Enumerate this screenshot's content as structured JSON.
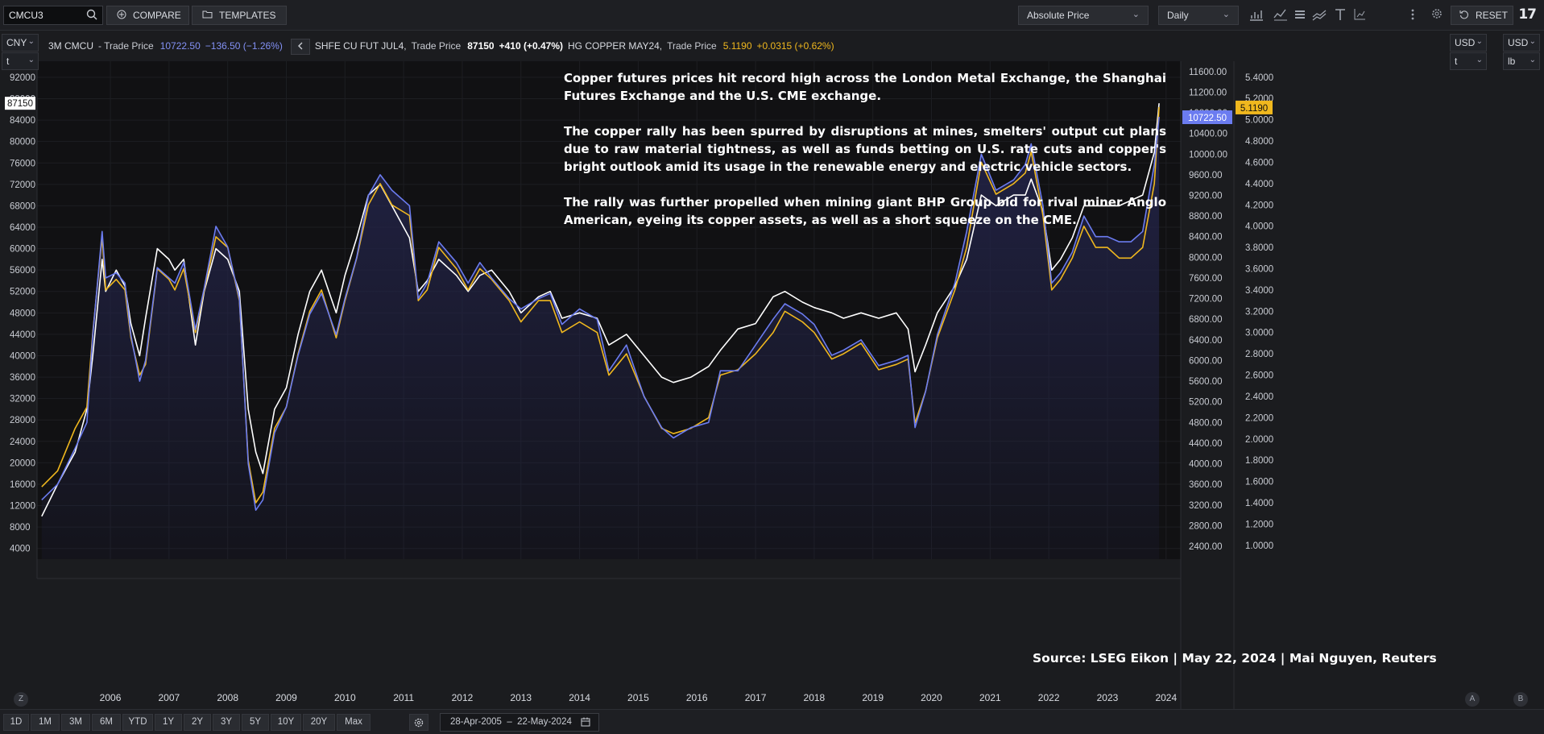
{
  "toolbar": {
    "ticker": "CMCU3",
    "compare_label": "COMPARE",
    "templates_label": "TEMPLATES",
    "price_mode": "Absolute Price",
    "interval": "Daily",
    "reset_label": "RESET",
    "logo": "17"
  },
  "left_axis_selectors": {
    "currency": "CNY",
    "unit": "t"
  },
  "right_axis_selectors": {
    "currency": "USD",
    "unit": "t",
    "currency2": "USD",
    "unit2": "lb"
  },
  "legend": {
    "s1_name": "3M CMCU",
    "s1_field": "- Trade Price",
    "s1_value": "10722.50",
    "s1_change": "−136.50 (−1.26%)",
    "s2_name": "SHFE CU FUT JUL4,",
    "s2_field": "Trade Price",
    "s2_value": "87150",
    "s2_change": "+410 (+0.47%)",
    "s3_name": "HG COPPER MAY24,",
    "s3_field": "Trade Price",
    "s3_value": "5.1190",
    "s3_change": "+0.0315 (+0.62%)"
  },
  "annotation": {
    "p1": "Copper futures prices hit record high across the London Metal Exchange, the Shanghai Futures Exchange and the U.S. CME exchange.",
    "p2": "The copper rally has been spurred by disruptions at mines, smelters' output cut plans due to raw material tightness, as well as funds betting on U.S. rate cuts and copper's bright outlook amid its usage in the renewable energy and electric vehicle sectors.",
    "p3": "The rally was further propelled when mining giant BHP Group bid for rival miner Anglo American, eyeing its copper assets, as well as a short squeeze on the CME."
  },
  "source": "Source: LSEG Eikon | May 22, 2024 | Mai Nguyen, Reuters",
  "bottom": {
    "z_label": "Z",
    "a_label": "A",
    "b_label": "B",
    "ranges": [
      "1D",
      "1M",
      "3M",
      "6M",
      "YTD",
      "1Y",
      "2Y",
      "3Y",
      "5Y",
      "10Y",
      "20Y",
      "Max"
    ],
    "date_range": "28-Apr-2005  –  22-May-2024"
  },
  "colors": {
    "lme": "#6b7cf0",
    "shfe": "#ffffff",
    "comex": "#f0b81e",
    "background": "#111113",
    "area": "#23244a"
  },
  "chart_data": {
    "type": "line",
    "x_ticks": [
      "2006",
      "2007",
      "2008",
      "2009",
      "2010",
      "2011",
      "2012",
      "2013",
      "2014",
      "2015",
      "2016",
      "2017",
      "2018",
      "2019",
      "2020",
      "2021",
      "2022",
      "2023",
      "2024"
    ],
    "left_axis": {
      "ticks": [
        4000,
        8000,
        12000,
        16000,
        20000,
        24000,
        28000,
        32000,
        36000,
        40000,
        44000,
        48000,
        52000,
        56000,
        60000,
        64000,
        68000,
        72000,
        76000,
        80000,
        84000,
        88000,
        92000
      ],
      "range": [
        2000,
        95000
      ],
      "last_label": "87150"
    },
    "right_axis_1": {
      "ticks": [
        2400,
        2800,
        3200,
        3600,
        4000,
        4400,
        4800,
        5200,
        5600,
        6000,
        6400,
        6800,
        7200,
        7600,
        8000,
        8400,
        8800,
        9200,
        9600,
        10000,
        10400,
        10800,
        11200,
        11600
      ],
      "range": [
        2150,
        11800
      ],
      "last_label": "10722.50"
    },
    "right_axis_2": {
      "ticks": [
        1.0,
        1.2,
        1.4,
        1.6,
        1.8,
        2.0,
        2.2,
        2.4,
        2.6,
        2.8,
        3.0,
        3.2,
        3.4,
        3.6,
        3.8,
        4.0,
        4.2,
        4.4,
        4.6,
        4.8,
        5.0,
        5.2,
        5.4
      ],
      "range": [
        0.87,
        5.55
      ],
      "last_label": "5.1190"
    },
    "series": [
      {
        "name": "3M CMCU",
        "axis": "right_axis_1",
        "x": [
          2005.33,
          2005.6,
          2005.9,
          2006.1,
          2006.2,
          2006.36,
          2006.42,
          2006.6,
          2006.75,
          2006.85,
          2007.0,
          2007.1,
          2007.3,
          2007.5,
          2007.6,
          2007.75,
          2007.95,
          2008.1,
          2008.3,
          2008.5,
          2008.7,
          2008.85,
          2008.98,
          2009.1,
          2009.3,
          2009.5,
          2009.7,
          2009.9,
          2010.1,
          2010.35,
          2010.5,
          2010.7,
          2010.9,
          2011.1,
          2011.3,
          2011.6,
          2011.75,
          2011.9,
          2012.1,
          2012.4,
          2012.6,
          2012.8,
          2013.0,
          2013.3,
          2013.5,
          2013.8,
          2014.0,
          2014.2,
          2014.5,
          2014.8,
          2015.0,
          2015.3,
          2015.6,
          2015.9,
          2016.1,
          2016.4,
          2016.7,
          2016.9,
          2017.2,
          2017.5,
          2017.8,
          2018.0,
          2018.3,
          2018.5,
          2018.8,
          2019.0,
          2019.3,
          2019.6,
          2019.9,
          2020.1,
          2020.22,
          2020.4,
          2020.6,
          2020.9,
          2021.1,
          2021.35,
          2021.6,
          2021.9,
          2022.1,
          2022.2,
          2022.4,
          2022.55,
          2022.7,
          2022.9,
          2023.1,
          2023.3,
          2023.5,
          2023.7,
          2023.9,
          2024.1,
          2024.3,
          2024.38
        ],
        "values": [
          3300,
          3600,
          4300,
          4800,
          6500,
          8500,
          7600,
          7700,
          7500,
          6500,
          5600,
          6000,
          7800,
          7600,
          7500,
          7900,
          6600,
          7400,
          8600,
          8200,
          7200,
          4000,
          3100,
          3300,
          4600,
          5100,
          6100,
          6900,
          7300,
          6500,
          7200,
          8000,
          9200,
          9600,
          9300,
          9000,
          7200,
          7500,
          8300,
          7900,
          7500,
          7900,
          7600,
          7200,
          7000,
          7200,
          7300,
          6700,
          7000,
          6800,
          5800,
          6300,
          5300,
          4700,
          4500,
          4700,
          4800,
          5800,
          5800,
          6300,
          6800,
          7100,
          6900,
          6700,
          6100,
          6200,
          6400,
          5900,
          6000,
          6100,
          4700,
          5400,
          6500,
          7500,
          8500,
          10000,
          9300,
          9500,
          9800,
          10200,
          9000,
          7500,
          7700,
          8100,
          8800,
          8400,
          8400,
          8300,
          8300,
          8500,
          9800,
          10722.5
        ]
      },
      {
        "name": "SHFE CU FUT JUL4",
        "axis": "left_axis",
        "x": [
          2005.33,
          2005.6,
          2005.9,
          2006.1,
          2006.2,
          2006.36,
          2006.42,
          2006.6,
          2006.75,
          2006.85,
          2007.0,
          2007.1,
          2007.3,
          2007.5,
          2007.6,
          2007.75,
          2007.95,
          2008.1,
          2008.3,
          2008.5,
          2008.7,
          2008.85,
          2008.98,
          2009.1,
          2009.3,
          2009.5,
          2009.7,
          2009.9,
          2010.1,
          2010.35,
          2010.5,
          2010.7,
          2010.9,
          2011.1,
          2011.3,
          2011.6,
          2011.75,
          2011.9,
          2012.1,
          2012.4,
          2012.6,
          2012.8,
          2013.0,
          2013.3,
          2013.5,
          2013.8,
          2014.0,
          2014.2,
          2014.5,
          2014.8,
          2015.0,
          2015.3,
          2015.6,
          2015.9,
          2016.1,
          2016.4,
          2016.7,
          2016.9,
          2017.2,
          2017.5,
          2017.8,
          2018.0,
          2018.3,
          2018.5,
          2018.8,
          2019.0,
          2019.3,
          2019.6,
          2019.9,
          2020.1,
          2020.22,
          2020.4,
          2020.6,
          2020.9,
          2021.1,
          2021.35,
          2021.6,
          2021.9,
          2022.1,
          2022.2,
          2022.4,
          2022.55,
          2022.7,
          2022.9,
          2023.1,
          2023.3,
          2023.5,
          2023.7,
          2023.9,
          2024.1,
          2024.3,
          2024.38
        ],
        "values": [
          10000,
          16000,
          22000,
          30000,
          40000,
          58000,
          52000,
          56000,
          53000,
          46000,
          40000,
          47000,
          60000,
          58000,
          56000,
          58000,
          42000,
          52000,
          60000,
          58000,
          52000,
          30000,
          22000,
          18000,
          30000,
          34000,
          44000,
          52000,
          56000,
          48000,
          55000,
          62000,
          70000,
          72000,
          68000,
          62000,
          52000,
          54000,
          58000,
          55000,
          52000,
          55000,
          56000,
          52000,
          48000,
          51000,
          52000,
          47000,
          48000,
          47000,
          42000,
          44000,
          40000,
          36000,
          35000,
          36000,
          38000,
          41000,
          45000,
          46000,
          51000,
          52000,
          50000,
          49000,
          48000,
          47000,
          48000,
          47000,
          48000,
          45000,
          37000,
          42000,
          48000,
          53000,
          58000,
          70000,
          68000,
          70000,
          70000,
          73000,
          67000,
          56000,
          58000,
          62000,
          68000,
          68000,
          68000,
          68000,
          69000,
          70000,
          78000,
          87150
        ]
      },
      {
        "name": "HG COPPER MAY24",
        "axis": "right_axis_2",
        "x": [
          2005.33,
          2005.6,
          2005.9,
          2006.1,
          2006.2,
          2006.36,
          2006.42,
          2006.6,
          2006.75,
          2006.85,
          2007.0,
          2007.1,
          2007.3,
          2007.5,
          2007.6,
          2007.75,
          2007.95,
          2008.1,
          2008.3,
          2008.5,
          2008.7,
          2008.85,
          2008.98,
          2009.1,
          2009.3,
          2009.5,
          2009.7,
          2009.9,
          2010.1,
          2010.35,
          2010.5,
          2010.7,
          2010.9,
          2011.1,
          2011.3,
          2011.6,
          2011.75,
          2011.9,
          2012.1,
          2012.4,
          2012.6,
          2012.8,
          2013.0,
          2013.3,
          2013.5,
          2013.8,
          2014.0,
          2014.2,
          2014.5,
          2014.8,
          2015.0,
          2015.3,
          2015.6,
          2015.9,
          2016.1,
          2016.4,
          2016.7,
          2016.9,
          2017.2,
          2017.5,
          2017.8,
          2018.0,
          2018.3,
          2018.5,
          2018.8,
          2019.0,
          2019.3,
          2019.6,
          2019.9,
          2020.1,
          2020.22,
          2020.4,
          2020.6,
          2020.9,
          2021.1,
          2021.35,
          2021.6,
          2021.9,
          2022.1,
          2022.2,
          2022.4,
          2022.55,
          2022.7,
          2022.9,
          2023.1,
          2023.3,
          2023.5,
          2023.7,
          2023.9,
          2024.1,
          2024.3,
          2024.38
        ],
        "values": [
          1.55,
          1.7,
          2.1,
          2.3,
          3.0,
          3.9,
          3.4,
          3.5,
          3.4,
          2.95,
          2.6,
          2.7,
          3.6,
          3.5,
          3.4,
          3.6,
          3.0,
          3.4,
          3.9,
          3.8,
          3.3,
          1.8,
          1.4,
          1.5,
          2.1,
          2.3,
          2.8,
          3.2,
          3.4,
          2.95,
          3.3,
          3.7,
          4.2,
          4.4,
          4.2,
          4.1,
          3.3,
          3.4,
          3.8,
          3.6,
          3.4,
          3.6,
          3.5,
          3.3,
          3.1,
          3.3,
          3.3,
          3.0,
          3.1,
          3.0,
          2.6,
          2.8,
          2.4,
          2.1,
          2.05,
          2.1,
          2.2,
          2.6,
          2.65,
          2.8,
          3.0,
          3.2,
          3.1,
          3.0,
          2.75,
          2.8,
          2.9,
          2.65,
          2.7,
          2.75,
          2.15,
          2.45,
          2.95,
          3.4,
          3.8,
          4.6,
          4.3,
          4.4,
          4.5,
          4.7,
          4.1,
          3.4,
          3.5,
          3.7,
          4.0,
          3.8,
          3.8,
          3.7,
          3.7,
          3.8,
          4.4,
          5.119
        ]
      }
    ]
  }
}
